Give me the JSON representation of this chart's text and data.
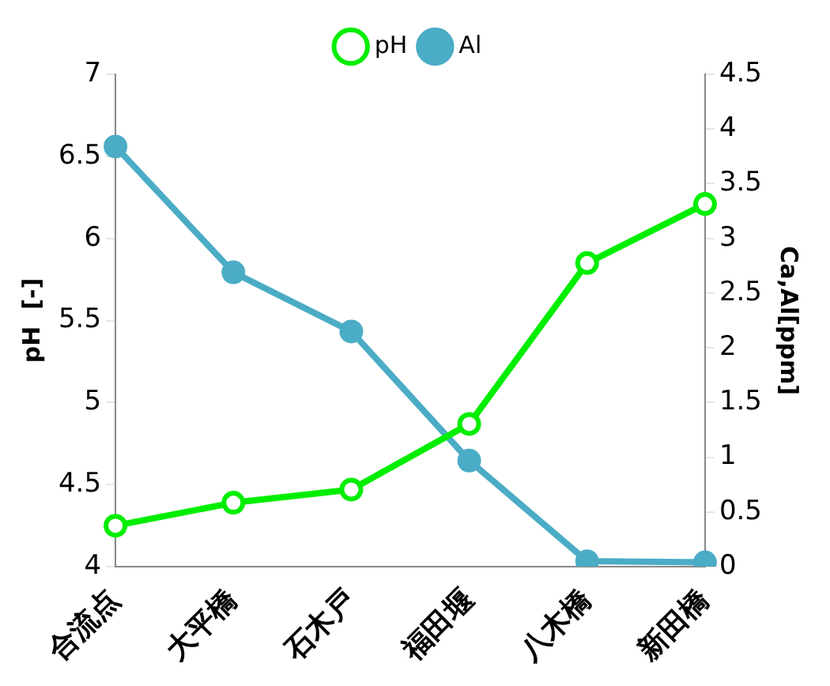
{
  "chart_data": {
    "type": "line",
    "ylabel": "pH  [-]",
    "y2label": "Ca,Al[ppm]",
    "categories": [
      "合流点",
      "大平橋",
      "石木戸",
      "福田堰",
      "八木橋",
      "新田橋"
    ],
    "series": [
      {
        "name": "pH",
        "color": "#00ee00",
        "values": [
          4.25,
          4.39,
          4.47,
          4.87,
          5.85,
          6.21
        ]
      },
      {
        "name": "Al",
        "color": "#4bacc6",
        "axis": "y2",
        "values": [
          3.84,
          2.69,
          2.15,
          0.97,
          0.05,
          0.04
        ]
      }
    ],
    "ylim": [
      4,
      7
    ],
    "yticks": [
      4,
      4.5,
      5,
      5.5,
      6,
      6.5,
      7
    ],
    "y2lim": [
      0,
      4.5
    ],
    "y2ticks": [
      0,
      0.5,
      1,
      1.5,
      2,
      2.5,
      3,
      3.5,
      4,
      4.5
    ],
    "grid": false,
    "legend": "top",
    "marker": "circle",
    "line_style": "solid"
  }
}
